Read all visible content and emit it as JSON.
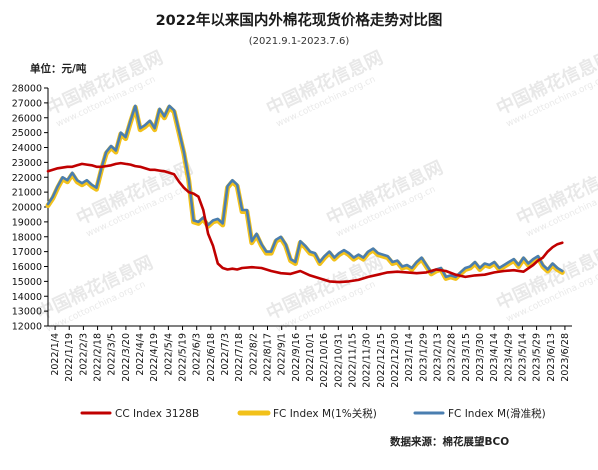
{
  "chart_data": {
    "type": "line",
    "title": "2022年以来国内外棉花现货价格走势对比图",
    "subtitle": "(2021.9.1-2023.7.6)",
    "unit_label": "单位：元/吨",
    "source": "数据来源：棉花展望BCO",
    "watermark_text": "中国棉花信息网",
    "watermark_url": "www.cottonchina.org.cn",
    "ylim": [
      12000,
      28000
    ],
    "y_ticks": [
      12000,
      13000,
      14000,
      15000,
      16000,
      17000,
      18000,
      19000,
      20000,
      21000,
      22000,
      23000,
      24000,
      25000,
      26000,
      27000,
      28000
    ],
    "x_ticks": [
      "2022/1/4",
      "2022/1/19",
      "2022/2/3",
      "2022/2/18",
      "2022/3/5",
      "2022/3/20",
      "2022/4/4",
      "2022/4/19",
      "2022/5/4",
      "2022/5/19",
      "2022/6/3",
      "2022/6/18",
      "2022/7/3",
      "2022/7/18",
      "2022/8/2",
      "2022/8/17",
      "2022/9/1",
      "2022/9/16",
      "2022/10/1",
      "2022/10/16",
      "2022/10/31",
      "2022/11/15",
      "2022/11/30",
      "2022/12/15",
      "2022/12/30",
      "2023/1/14",
      "2023/1/29",
      "2023/2/13",
      "2023/2/28",
      "2023/3/15",
      "2023/3/30",
      "2023/4/14",
      "2023/4/29",
      "2023/5/14",
      "2023/5/29",
      "2023/6/13",
      "2023/6/28"
    ],
    "x_range_days": [
      0,
      540
    ],
    "legend_position": "bottom",
    "grid": false,
    "series": [
      {
        "name": "CC Index 3128B",
        "color": "#c00000",
        "x": [
          0,
          10,
          20,
          25,
          30,
          35,
          40,
          45,
          50,
          55,
          60,
          65,
          70,
          75,
          80,
          85,
          90,
          95,
          100,
          105,
          110,
          115,
          120,
          125,
          130,
          135,
          140,
          145,
          150,
          155,
          160,
          165,
          170,
          175,
          180,
          185,
          190,
          195,
          200,
          210,
          220,
          230,
          240,
          250,
          260,
          270,
          280,
          290,
          300,
          310,
          320,
          330,
          340,
          350,
          360,
          370,
          380,
          390,
          400,
          410,
          420,
          430,
          440,
          450,
          460,
          470,
          480,
          490,
          500,
          505,
          510,
          515,
          520,
          525,
          530
        ],
        "y": [
          22400,
          22600,
          22700,
          22700,
          22800,
          22900,
          22850,
          22800,
          22700,
          22700,
          22750,
          22800,
          22900,
          22950,
          22900,
          22850,
          22750,
          22700,
          22600,
          22500,
          22500,
          22450,
          22400,
          22300,
          22200,
          21700,
          21300,
          21000,
          20900,
          20700,
          19800,
          18200,
          17400,
          16200,
          15900,
          15800,
          15850,
          15800,
          15900,
          15950,
          15900,
          15700,
          15550,
          15500,
          15700,
          15400,
          15200,
          15000,
          14950,
          15000,
          15100,
          15300,
          15450,
          15600,
          15650,
          15600,
          15550,
          15600,
          15800,
          15700,
          15450,
          15300,
          15400,
          15450,
          15600,
          15700,
          15750,
          15650,
          16100,
          16400,
          16600,
          17000,
          17300,
          17500,
          17600
        ]
      },
      {
        "name": "FC Index M(1%关税)",
        "color": "#f2c11a",
        "x": [
          0,
          5,
          10,
          15,
          20,
          25,
          30,
          35,
          40,
          45,
          50,
          55,
          60,
          65,
          70,
          75,
          80,
          85,
          90,
          95,
          100,
          105,
          110,
          115,
          120,
          125,
          130,
          135,
          140,
          145,
          150,
          155,
          160,
          165,
          170,
          175,
          180,
          185,
          190,
          195,
          200,
          205,
          210,
          215,
          220,
          225,
          230,
          235,
          240,
          245,
          250,
          255,
          260,
          265,
          270,
          275,
          280,
          285,
          290,
          295,
          300,
          305,
          310,
          315,
          320,
          325,
          330,
          335,
          340,
          345,
          350,
          355,
          360,
          365,
          370,
          375,
          380,
          385,
          390,
          395,
          400,
          405,
          410,
          415,
          420,
          425,
          430,
          435,
          440,
          445,
          450,
          455,
          460,
          465,
          470,
          475,
          480,
          485,
          490,
          495,
          500,
          505,
          510,
          515,
          520,
          525,
          530
        ],
        "y": [
          20100,
          20600,
          21300,
          21900,
          21700,
          22200,
          21700,
          21500,
          21700,
          21400,
          21200,
          22500,
          23600,
          24000,
          23700,
          24900,
          24600,
          25700,
          26700,
          25200,
          25400,
          25700,
          25200,
          26500,
          26000,
          26700,
          26400,
          25000,
          23600,
          21800,
          19000,
          18900,
          19200,
          18700,
          19000,
          19100,
          18800,
          21300,
          21700,
          21400,
          19700,
          19700,
          17600,
          18100,
          17400,
          16900,
          16900,
          17700,
          17900,
          17400,
          16400,
          16200,
          17600,
          17300,
          16900,
          16800,
          16200,
          16600,
          16900,
          16500,
          16800,
          17000,
          16800,
          16500,
          16700,
          16500,
          16900,
          17100,
          16800,
          16700,
          16600,
          16200,
          16300,
          15900,
          16000,
          15800,
          16200,
          16500,
          16000,
          15500,
          15700,
          15800,
          15200,
          15300,
          15200,
          15500,
          15800,
          15900,
          16200,
          15800,
          16100,
          16000,
          16200,
          15800,
          16000,
          16200,
          16400,
          16000,
          16500,
          16100,
          16400,
          16600,
          16000,
          15700,
          16100,
          15800,
          15600
        ]
      },
      {
        "name": "FC Index M(滑准税)",
        "color": "#4a7eb0",
        "x": [
          0,
          5,
          10,
          15,
          20,
          25,
          30,
          35,
          40,
          45,
          50,
          55,
          60,
          65,
          70,
          75,
          80,
          85,
          90,
          95,
          100,
          105,
          110,
          115,
          120,
          125,
          130,
          135,
          140,
          145,
          150,
          155,
          160,
          165,
          170,
          175,
          180,
          185,
          190,
          195,
          200,
          205,
          210,
          215,
          220,
          225,
          230,
          235,
          240,
          245,
          250,
          255,
          260,
          265,
          270,
          275,
          280,
          285,
          290,
          295,
          300,
          305,
          310,
          315,
          320,
          325,
          330,
          335,
          340,
          345,
          350,
          355,
          360,
          365,
          370,
          375,
          380,
          385,
          390,
          395,
          400,
          405,
          410,
          415,
          420,
          425,
          430,
          435,
          440,
          445,
          450,
          455,
          460,
          465,
          470,
          475,
          480,
          485,
          490,
          495,
          500,
          505,
          510,
          515,
          520,
          525,
          530
        ],
        "y": [
          20200,
          20700,
          21400,
          22000,
          21800,
          22300,
          21800,
          21600,
          21800,
          21500,
          21300,
          22600,
          23700,
          24100,
          23800,
          25000,
          24700,
          25800,
          26800,
          25300,
          25500,
          25800,
          25300,
          26600,
          26100,
          26800,
          26500,
          25100,
          23700,
          21900,
          19100,
          19000,
          19300,
          18800,
          19100,
          19200,
          18900,
          21400,
          21800,
          21500,
          19800,
          19800,
          17700,
          18200,
          17500,
          17000,
          17000,
          17800,
          18000,
          17500,
          16500,
          16300,
          17700,
          17400,
          17000,
          16900,
          16300,
          16700,
          17000,
          16600,
          16900,
          17100,
          16900,
          16600,
          16800,
          16600,
          17000,
          17200,
          16900,
          16800,
          16700,
          16300,
          16400,
          16000,
          16100,
          15900,
          16300,
          16600,
          16100,
          15600,
          15800,
          15900,
          15300,
          15400,
          15300,
          15600,
          15900,
          16000,
          16300,
          15900,
          16200,
          16100,
          16300,
          15900,
          16100,
          16300,
          16500,
          16100,
          16600,
          16200,
          16500,
          16700,
          16100,
          15800,
          16200,
          15900,
          15700
        ]
      }
    ]
  }
}
